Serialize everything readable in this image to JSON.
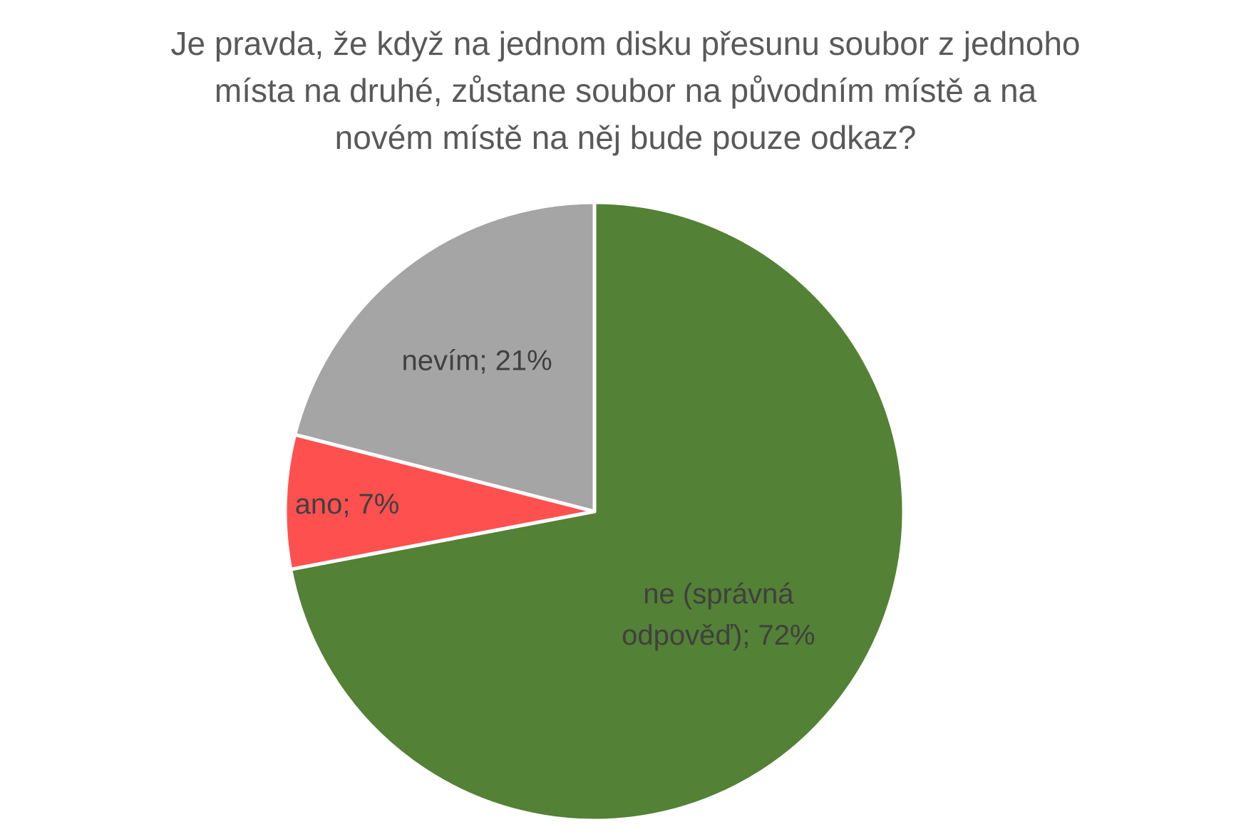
{
  "chart_data": {
    "type": "pie",
    "title_lines": [
      "Je pravda, že když na jednom disku přesunu soubor z jednoho",
      "místa na druhé, zůstane soubor na původním místě a na",
      "novém místě na něj bude pouze odkaz?"
    ],
    "slices": [
      {
        "name": "ne (správná odpověď)",
        "value": 72,
        "label_lines": [
          "ne (správná",
          "odpověď); 72%"
        ],
        "color": "#538135"
      },
      {
        "name": "ano",
        "value": 7,
        "label_lines": [
          "ano; 7%"
        ],
        "color": "#FF5050"
      },
      {
        "name": "nevím",
        "value": 21,
        "label_lines": [
          "nevím; 21%"
        ],
        "color": "#A5A5A5"
      }
    ],
    "start_angle_deg": 0,
    "direction": "clockwise",
    "legend": "none"
  }
}
